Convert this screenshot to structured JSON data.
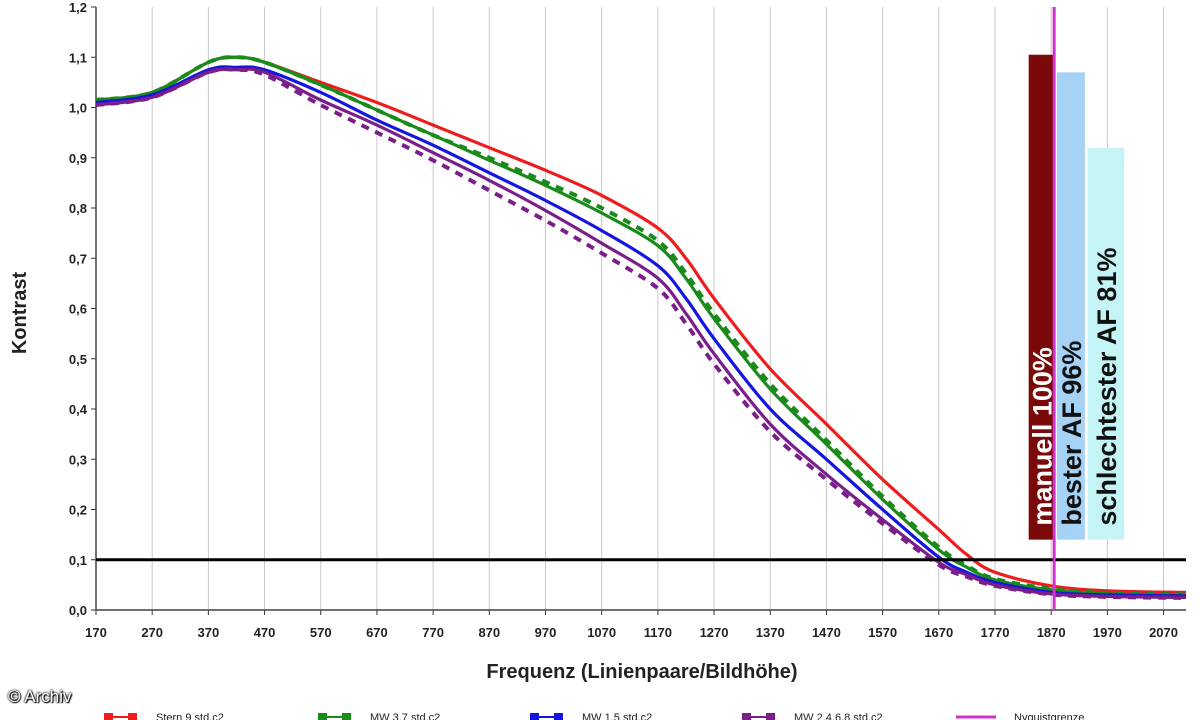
{
  "copyright": "© Archiv",
  "colors": {
    "stern": "#ee1c1c",
    "mw37": "#1a8a1a",
    "mw15": "#1515e0",
    "mw2468": "#7a1f8a",
    "nyquist": "#cc33cc",
    "threshold": "#000000",
    "grid": "#c8c8c8"
  },
  "chart_data": {
    "type": "line",
    "title": "",
    "xlabel": "Frequenz (Linienpaare/Bildhöhe)",
    "ylabel": "Kontrast",
    "xlim": [
      170,
      2110
    ],
    "ylim": [
      0,
      1.2
    ],
    "x_ticks": [
      170,
      270,
      370,
      470,
      570,
      670,
      770,
      870,
      970,
      1070,
      1170,
      1270,
      1370,
      1470,
      1570,
      1670,
      1770,
      1870,
      1970,
      2070
    ],
    "y_ticks": [
      "0,0",
      "0,1",
      "0,2",
      "0,3",
      "0,4",
      "0,5",
      "0,6",
      "0,7",
      "0,8",
      "0,9",
      "1,0",
      "1,1",
      "1,2"
    ],
    "grid": "vertical",
    "x": [
      170,
      270,
      370,
      420,
      470,
      570,
      670,
      770,
      870,
      970,
      1070,
      1170,
      1220,
      1270,
      1370,
      1470,
      1570,
      1670,
      1720,
      1770,
      1870,
      1970,
      2110
    ],
    "series": [
      {
        "name": "Stern 9 std.c2",
        "color": "#ee1c1c",
        "dash": false,
        "values": [
          1.015,
          1.03,
          1.09,
          1.1,
          1.09,
          1.05,
          1.01,
          0.965,
          0.92,
          0.875,
          0.825,
          0.76,
          0.7,
          0.62,
          0.48,
          0.37,
          0.26,
          0.16,
          0.11,
          0.075,
          0.048,
          0.038,
          0.035
        ]
      },
      {
        "name": "MW 3,7 std.c2",
        "color": "#1a8a1a",
        "dash": false,
        "values": [
          1.015,
          1.03,
          1.09,
          1.1,
          1.09,
          1.045,
          0.995,
          0.945,
          0.895,
          0.845,
          0.79,
          0.725,
          0.66,
          0.58,
          0.44,
          0.33,
          0.22,
          0.12,
          0.085,
          0.06,
          0.04,
          0.032,
          0.03
        ]
      },
      {
        "name": "MW 3,7 (dashed)",
        "color": "#1a8a1a",
        "dash": true,
        "values": [
          1.015,
          1.03,
          1.09,
          1.1,
          1.09,
          1.045,
          0.995,
          0.945,
          0.9,
          0.852,
          0.8,
          0.735,
          0.67,
          0.59,
          0.45,
          0.338,
          0.226,
          0.125,
          0.088,
          0.062,
          0.042,
          0.034,
          0.031
        ]
      },
      {
        "name": "MW 1,5 std.c2",
        "color": "#1515e0",
        "dash": false,
        "values": [
          1.01,
          1.025,
          1.075,
          1.08,
          1.075,
          1.03,
          0.975,
          0.925,
          0.87,
          0.815,
          0.755,
          0.685,
          0.62,
          0.54,
          0.4,
          0.3,
          0.2,
          0.105,
          0.075,
          0.055,
          0.035,
          0.03,
          0.028
        ]
      },
      {
        "name": "MW 2,4,6,8 std.c2",
        "color": "#7a1f8a",
        "dash": false,
        "values": [
          1.005,
          1.02,
          1.07,
          1.075,
          1.07,
          1.015,
          0.965,
          0.91,
          0.855,
          0.795,
          0.73,
          0.66,
          0.59,
          0.51,
          0.37,
          0.27,
          0.18,
          0.095,
          0.07,
          0.05,
          0.032,
          0.027,
          0.025
        ]
      },
      {
        "name": "MW 2,4,6,8 (dashed)",
        "color": "#7a1f8a",
        "dash": true,
        "values": [
          1.005,
          1.02,
          1.07,
          1.075,
          1.065,
          1.005,
          0.95,
          0.895,
          0.835,
          0.775,
          0.71,
          0.64,
          0.57,
          0.49,
          0.355,
          0.26,
          0.172,
          0.09,
          0.066,
          0.048,
          0.031,
          0.026,
          0.024
        ]
      }
    ],
    "threshold": {
      "y": 0.1
    },
    "nyquist": {
      "x": 1870
    },
    "bars": [
      {
        "label": "manuell 100%",
        "x_from": 1830,
        "x_to": 1875,
        "top": 1.105,
        "bottom": 0.14,
        "fill": "#7a0a0a",
        "text_color": "#ffffff"
      },
      {
        "label": "bester AF 96%",
        "x_from": 1880,
        "x_to": 1930,
        "top": 1.07,
        "bottom": 0.14,
        "fill": "#a6d2f5",
        "text_color": "#111111"
      },
      {
        "label": "schlechtester AF 81%",
        "x_from": 1935,
        "x_to": 2000,
        "top": 0.92,
        "bottom": 0.14,
        "fill": "#c4f4f6",
        "text_color": "#111111"
      }
    ],
    "legend": {
      "placement": "bottom",
      "entries": [
        {
          "label": "Stern 9 std.c2",
          "color": "#ee1c1c"
        },
        {
          "label": "MW 3,7 std.c2",
          "color": "#1a8a1a"
        },
        {
          "label": "MW 1,5 std.c2",
          "color": "#1515e0"
        },
        {
          "label": "MW 2,4,6,8 std.c2",
          "color": "#7a1f8a"
        },
        {
          "label": "Nyquistgrenze",
          "color": "#cc33cc"
        }
      ]
    }
  }
}
